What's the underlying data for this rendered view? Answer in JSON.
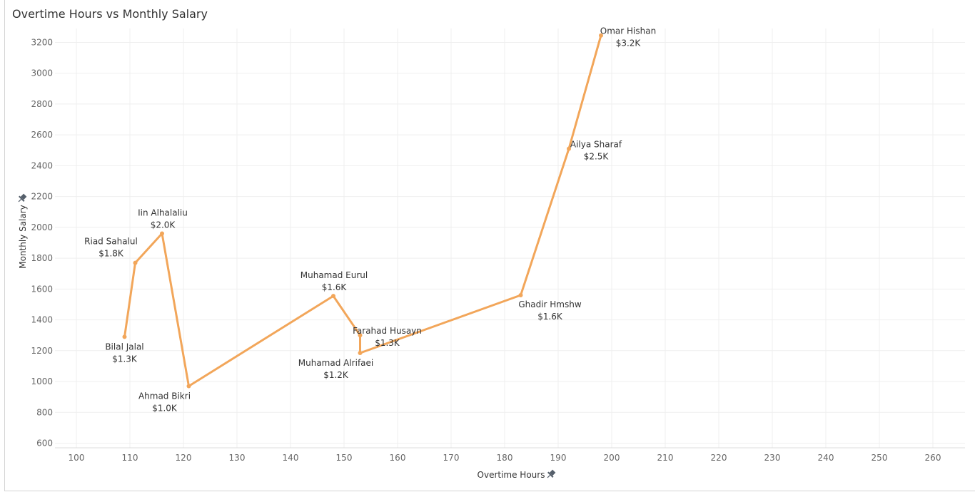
{
  "chart_data": {
    "type": "line",
    "title": "Overtime Hours vs Monthly Salary",
    "xlabel": "Overtime Hours",
    "ylabel": "Monthly Salary",
    "xlim": [
      96,
      266
    ],
    "ylim": [
      570,
      3290
    ],
    "x_ticks": [
      100,
      110,
      120,
      130,
      140,
      150,
      160,
      170,
      180,
      190,
      200,
      210,
      220,
      230,
      240,
      250,
      260
    ],
    "y_ticks": [
      600,
      800,
      1000,
      1200,
      1400,
      1600,
      1800,
      2000,
      2200,
      2400,
      2600,
      2800,
      3000,
      3200
    ],
    "grid": true,
    "line_color": "#f2a65a",
    "series": [
      {
        "points": [
          {
            "x": 109,
            "y": 1290,
            "name": "Bilal Jalal",
            "value_label": "$1.3K",
            "anchor": "below"
          },
          {
            "x": 111,
            "y": 1770,
            "name": "Riad Sahalul",
            "value_label": "$1.8K",
            "anchor": "above-left"
          },
          {
            "x": 116,
            "y": 1960,
            "name": "Iin Alhalaliu",
            "value_label": "$2.0K",
            "anchor": "above"
          },
          {
            "x": 121,
            "y": 970,
            "name": "Ahmad Bikri",
            "value_label": "$1.0K",
            "anchor": "below-left"
          },
          {
            "x": 148,
            "y": 1555,
            "name": "Muhamad Eurul",
            "value_label": "$1.6K",
            "anchor": "above"
          },
          {
            "x": 153,
            "y": 1300,
            "name": "Farahad Husayn",
            "value_label": "$1.3K",
            "anchor": "right"
          },
          {
            "x": 153,
            "y": 1185,
            "name": "Muhamad Alrifaei",
            "value_label": "$1.2K",
            "anchor": "below-left"
          },
          {
            "x": 183,
            "y": 1560,
            "name": "Ghadir Hmshw",
            "value_label": "$1.6K",
            "anchor": "below-right"
          },
          {
            "x": 192,
            "y": 2510,
            "name": "Ailya Sharaf",
            "value_label": "$2.5K",
            "anchor": "right"
          },
          {
            "x": 198,
            "y": 3245,
            "name": "Omar Hishan",
            "value_label": "$3.2K",
            "anchor": "right"
          }
        ]
      }
    ]
  }
}
